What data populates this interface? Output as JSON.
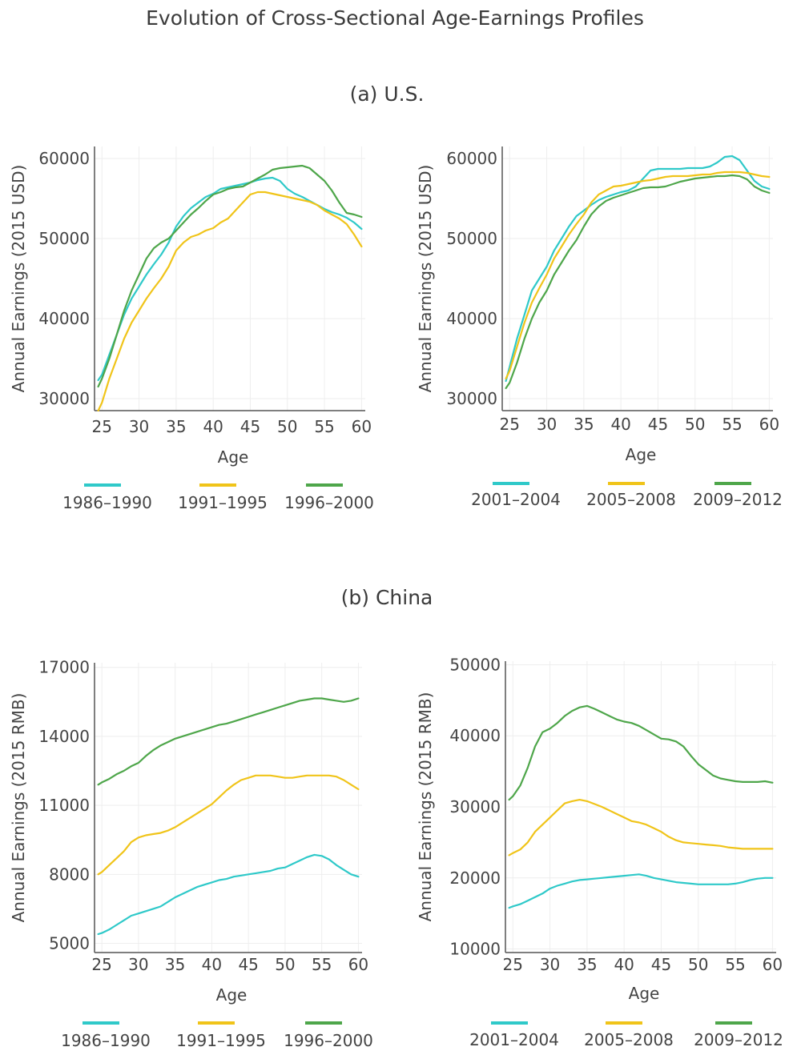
{
  "title": "Evolution of Cross-Sectional Age-Earnings Profiles",
  "sections": [
    "(a) U.S.",
    "(b) China"
  ],
  "colors": {
    "cyan": "#2fc9c9",
    "yellow": "#f0c419",
    "green": "#4ea64a",
    "grid": "#eeeeee",
    "axis": "#555555"
  },
  "chart_data": [
    {
      "type": "line",
      "panel": "a-left",
      "xlabel": "Age",
      "ylabel": "Annual Earnings (2015 USD)",
      "xlim": [
        24,
        60.5
      ],
      "ylim": [
        28500,
        61500
      ],
      "xticks": [
        25,
        30,
        35,
        40,
        45,
        50,
        55,
        60
      ],
      "yticks": [
        30000,
        40000,
        50000,
        60000
      ],
      "series": [
        {
          "name": "1986-1990",
          "color": "#2fc9c9",
          "x": [
            24.5,
            25,
            26,
            27,
            28,
            29,
            30,
            31,
            32,
            33,
            34,
            35,
            36,
            37,
            38,
            39,
            40,
            41,
            42,
            43,
            44,
            45,
            46,
            47,
            48,
            49,
            50,
            51,
            52,
            53,
            54,
            55,
            56,
            57,
            58,
            59,
            60
          ],
          "y": [
            32300,
            33000,
            35500,
            38000,
            40500,
            42500,
            44000,
            45500,
            46800,
            48000,
            49500,
            51500,
            52800,
            53800,
            54500,
            55200,
            55600,
            56200,
            56400,
            56600,
            56800,
            57000,
            57300,
            57500,
            57600,
            57200,
            56200,
            55600,
            55200,
            54700,
            54200,
            53700,
            53300,
            53000,
            52600,
            52000,
            51200
          ]
        },
        {
          "name": "1991-1995",
          "color": "#f0c419",
          "x": [
            24.5,
            25,
            26,
            27,
            28,
            29,
            30,
            31,
            32,
            33,
            34,
            35,
            36,
            37,
            38,
            39,
            40,
            41,
            42,
            43,
            44,
            45,
            46,
            47,
            48,
            49,
            50,
            51,
            52,
            53,
            54,
            55,
            56,
            57,
            58,
            59,
            60
          ],
          "y": [
            28500,
            29500,
            32500,
            35000,
            37500,
            39500,
            41000,
            42500,
            43800,
            45000,
            46500,
            48500,
            49500,
            50200,
            50500,
            51000,
            51300,
            52000,
            52500,
            53500,
            54500,
            55500,
            55800,
            55800,
            55600,
            55400,
            55200,
            55000,
            54800,
            54600,
            54200,
            53500,
            53000,
            52500,
            51800,
            50500,
            49000
          ]
        },
        {
          "name": "1996-2000",
          "color": "#4ea64a",
          "x": [
            24.5,
            25,
            26,
            27,
            28,
            29,
            30,
            31,
            32,
            33,
            34,
            35,
            36,
            37,
            38,
            39,
            40,
            41,
            42,
            43,
            44,
            45,
            46,
            47,
            48,
            49,
            50,
            51,
            52,
            53,
            54,
            55,
            56,
            57,
            58,
            59,
            60
          ],
          "y": [
            31500,
            32500,
            35000,
            38000,
            41000,
            43500,
            45500,
            47500,
            48800,
            49500,
            50000,
            51000,
            52000,
            53000,
            53800,
            54700,
            55500,
            55800,
            56200,
            56400,
            56500,
            57000,
            57500,
            58000,
            58600,
            58800,
            58900,
            59000,
            59100,
            58800,
            58000,
            57200,
            56000,
            54500,
            53200,
            53000,
            52700
          ]
        }
      ],
      "legend": [
        "1986–1990",
        "1991–1995",
        "1996–2000"
      ]
    },
    {
      "type": "line",
      "panel": "a-right",
      "xlabel": "Age",
      "ylabel": "Annual Earnings (2015 USD)",
      "xlim": [
        24,
        60.5
      ],
      "ylim": [
        28500,
        61500
      ],
      "xticks": [
        25,
        30,
        35,
        40,
        45,
        50,
        55,
        60
      ],
      "yticks": [
        30000,
        40000,
        50000,
        60000
      ],
      "series": [
        {
          "name": "2001-2004",
          "color": "#2fc9c9",
          "x": [
            24.5,
            25,
            26,
            27,
            28,
            29,
            30,
            31,
            32,
            33,
            34,
            35,
            36,
            37,
            38,
            39,
            40,
            41,
            42,
            43,
            44,
            45,
            46,
            47,
            48,
            49,
            50,
            51,
            52,
            53,
            54,
            55,
            56,
            57,
            58,
            59,
            60
          ],
          "y": [
            32200,
            34000,
            37500,
            40500,
            43500,
            45000,
            46500,
            48500,
            50000,
            51500,
            52800,
            53500,
            54200,
            54800,
            55200,
            55500,
            55800,
            56000,
            56500,
            57500,
            58500,
            58700,
            58700,
            58700,
            58700,
            58800,
            58800,
            58800,
            59000,
            59500,
            60200,
            60300,
            59800,
            58500,
            57200,
            56500,
            56200
          ]
        },
        {
          "name": "2005-2008",
          "color": "#f0c419",
          "x": [
            24.5,
            25,
            26,
            27,
            28,
            29,
            30,
            31,
            32,
            33,
            34,
            35,
            36,
            37,
            38,
            39,
            40,
            41,
            42,
            43,
            44,
            45,
            46,
            47,
            48,
            49,
            50,
            51,
            52,
            53,
            54,
            55,
            56,
            57,
            58,
            59,
            60
          ],
          "y": [
            32500,
            33500,
            36500,
            39500,
            42000,
            43800,
            45500,
            47500,
            49000,
            50500,
            51800,
            53000,
            54500,
            55500,
            56000,
            56500,
            56600,
            56800,
            57000,
            57200,
            57300,
            57500,
            57700,
            57800,
            57800,
            57800,
            57900,
            58000,
            58000,
            58200,
            58300,
            58300,
            58300,
            58200,
            58000,
            57800,
            57700
          ]
        },
        {
          "name": "2009-2012",
          "color": "#4ea64a",
          "x": [
            24.5,
            25,
            26,
            27,
            28,
            29,
            30,
            31,
            32,
            33,
            34,
            35,
            36,
            37,
            38,
            39,
            40,
            41,
            42,
            43,
            44,
            45,
            46,
            47,
            48,
            49,
            50,
            51,
            52,
            53,
            54,
            55,
            56,
            57,
            58,
            59,
            60
          ],
          "y": [
            31300,
            32000,
            34500,
            37500,
            40000,
            42000,
            43500,
            45500,
            47000,
            48500,
            49800,
            51500,
            53000,
            54000,
            54700,
            55100,
            55400,
            55700,
            56000,
            56300,
            56400,
            56400,
            56500,
            56800,
            57100,
            57300,
            57500,
            57600,
            57700,
            57800,
            57800,
            57900,
            57800,
            57400,
            56500,
            56000,
            55700
          ]
        }
      ],
      "legend": [
        "2001–2004",
        "2005–2008",
        "2009–2012"
      ]
    },
    {
      "type": "line",
      "panel": "b-left",
      "xlabel": "Age",
      "ylabel": "Annual Earnings (2015 RMB)",
      "xlim": [
        24,
        60.5
      ],
      "ylim": [
        4600,
        17200
      ],
      "xticks": [
        25,
        30,
        35,
        40,
        45,
        50,
        55,
        60
      ],
      "yticks": [
        5000,
        8000,
        11000,
        14000,
        17000
      ],
      "series": [
        {
          "name": "1986-1990",
          "color": "#2fc9c9",
          "x": [
            24.5,
            25,
            26,
            27,
            28,
            29,
            30,
            31,
            32,
            33,
            34,
            35,
            36,
            37,
            38,
            39,
            40,
            41,
            42,
            43,
            44,
            45,
            46,
            47,
            48,
            49,
            50,
            51,
            52,
            53,
            54,
            55,
            56,
            57,
            58,
            59,
            60
          ],
          "y": [
            5400,
            5450,
            5600,
            5800,
            6000,
            6200,
            6300,
            6400,
            6500,
            6600,
            6800,
            7000,
            7150,
            7300,
            7450,
            7550,
            7650,
            7750,
            7800,
            7900,
            7950,
            8000,
            8050,
            8100,
            8150,
            8250,
            8300,
            8450,
            8600,
            8750,
            8850,
            8800,
            8650,
            8400,
            8200,
            8000,
            7900
          ]
        },
        {
          "name": "1991-1995",
          "color": "#f0c419",
          "x": [
            24.5,
            25,
            26,
            27,
            28,
            29,
            30,
            31,
            32,
            33,
            34,
            35,
            36,
            37,
            38,
            39,
            40,
            41,
            42,
            43,
            44,
            45,
            46,
            47,
            48,
            49,
            50,
            51,
            52,
            53,
            54,
            55,
            56,
            57,
            58,
            59,
            60
          ],
          "y": [
            8000,
            8100,
            8400,
            8700,
            9000,
            9400,
            9600,
            9700,
            9750,
            9800,
            9900,
            10050,
            10250,
            10450,
            10650,
            10850,
            11050,
            11350,
            11650,
            11900,
            12100,
            12200,
            12300,
            12300,
            12300,
            12250,
            12200,
            12200,
            12250,
            12300,
            12300,
            12300,
            12300,
            12250,
            12100,
            11900,
            11700
          ]
        },
        {
          "name": "1996-2000",
          "color": "#4ea64a",
          "x": [
            24.5,
            25,
            26,
            27,
            28,
            29,
            30,
            31,
            32,
            33,
            34,
            35,
            36,
            37,
            38,
            39,
            40,
            41,
            42,
            43,
            44,
            45,
            46,
            47,
            48,
            49,
            50,
            51,
            52,
            53,
            54,
            55,
            56,
            57,
            58,
            59,
            60
          ],
          "y": [
            11900,
            12000,
            12150,
            12350,
            12500,
            12700,
            12850,
            13150,
            13400,
            13600,
            13750,
            13900,
            14000,
            14100,
            14200,
            14300,
            14400,
            14500,
            14550,
            14650,
            14750,
            14850,
            14950,
            15050,
            15150,
            15250,
            15350,
            15450,
            15550,
            15600,
            15650,
            15650,
            15600,
            15550,
            15500,
            15550,
            15650
          ]
        }
      ],
      "legend": [
        "1986–1990",
        "1991–1995",
        "1996–2000"
      ]
    },
    {
      "type": "line",
      "panel": "b-right",
      "xlabel": "Age",
      "ylabel": "Annual Earnings (2015 RMB)",
      "xlim": [
        24,
        60.5
      ],
      "ylim": [
        9500,
        50500
      ],
      "xticks": [
        25,
        30,
        35,
        40,
        45,
        50,
        55,
        60
      ],
      "yticks": [
        10000,
        20000,
        30000,
        40000,
        50000
      ],
      "series": [
        {
          "name": "2001-2004",
          "color": "#2fc9c9",
          "x": [
            24.5,
            25,
            26,
            27,
            28,
            29,
            30,
            31,
            32,
            33,
            34,
            35,
            36,
            37,
            38,
            39,
            40,
            41,
            42,
            43,
            44,
            45,
            46,
            47,
            48,
            49,
            50,
            51,
            52,
            53,
            54,
            55,
            56,
            57,
            58,
            59,
            60
          ],
          "y": [
            15800,
            16000,
            16300,
            16800,
            17300,
            17800,
            18500,
            18900,
            19200,
            19500,
            19700,
            19800,
            19900,
            20000,
            20100,
            20200,
            20300,
            20400,
            20500,
            20300,
            20000,
            19800,
            19600,
            19400,
            19300,
            19200,
            19100,
            19100,
            19100,
            19100,
            19100,
            19200,
            19400,
            19700,
            19900,
            20000,
            20000
          ]
        },
        {
          "name": "2005-2008",
          "color": "#f0c419",
          "x": [
            24.5,
            25,
            26,
            27,
            28,
            29,
            30,
            31,
            32,
            33,
            34,
            35,
            36,
            37,
            38,
            39,
            40,
            41,
            42,
            43,
            44,
            45,
            46,
            47,
            48,
            49,
            50,
            51,
            52,
            53,
            54,
            55,
            56,
            57,
            58,
            59,
            60
          ],
          "y": [
            23200,
            23500,
            24000,
            25000,
            26500,
            27500,
            28500,
            29500,
            30500,
            30800,
            31000,
            30800,
            30400,
            30000,
            29500,
            29000,
            28500,
            28000,
            27800,
            27500,
            27000,
            26500,
            25800,
            25300,
            25000,
            24900,
            24800,
            24700,
            24600,
            24500,
            24300,
            24200,
            24100,
            24100,
            24100,
            24100,
            24100
          ]
        },
        {
          "name": "2009-2012",
          "color": "#4ea64a",
          "x": [
            24.5,
            25,
            26,
            27,
            28,
            29,
            30,
            31,
            32,
            33,
            34,
            35,
            36,
            37,
            38,
            39,
            40,
            41,
            42,
            43,
            44,
            45,
            46,
            47,
            48,
            49,
            50,
            51,
            52,
            53,
            54,
            55,
            56,
            57,
            58,
            59,
            60
          ],
          "y": [
            31000,
            31500,
            33000,
            35500,
            38500,
            40500,
            41000,
            41800,
            42800,
            43500,
            44000,
            44200,
            43800,
            43300,
            42800,
            42300,
            42000,
            41800,
            41400,
            40800,
            40200,
            39600,
            39500,
            39200,
            38500,
            37200,
            36000,
            35200,
            34400,
            34000,
            33800,
            33600,
            33500,
            33500,
            33500,
            33600,
            33400
          ]
        }
      ],
      "legend": [
        "2001–2004",
        "2005–2008",
        "2009–2012"
      ]
    }
  ]
}
